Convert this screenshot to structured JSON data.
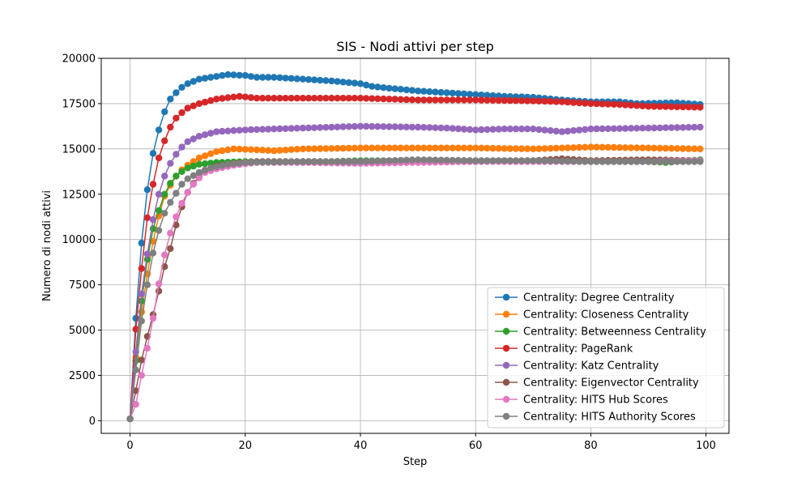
{
  "chart_data": {
    "type": "line",
    "title": "SIS - Nodi attivi per step",
    "xlabel": "Step",
    "ylabel": "Numero di nodi attivi",
    "xlim": [
      -5,
      104
    ],
    "ylim": [
      -700,
      20000
    ],
    "xticks": [
      0,
      20,
      40,
      60,
      80,
      100
    ],
    "yticks": [
      0,
      2500,
      5000,
      7500,
      10000,
      12500,
      15000,
      17500,
      20000
    ],
    "grid": true,
    "legend_position": "lower-right",
    "x_range": [
      0,
      99
    ],
    "series": [
      {
        "name": "Centrality: Degree Centrality",
        "color": "#1f77b4",
        "keypoints": [
          [
            0,
            100
          ],
          [
            1,
            5650
          ],
          [
            2,
            9800
          ],
          [
            3,
            12750
          ],
          [
            4,
            14750
          ],
          [
            5,
            16050
          ],
          [
            6,
            17050
          ],
          [
            7,
            17750
          ],
          [
            8,
            18100
          ],
          [
            9,
            18400
          ],
          [
            10,
            18600
          ],
          [
            12,
            18850
          ],
          [
            15,
            19000
          ],
          [
            17,
            19100
          ],
          [
            20,
            19050
          ],
          [
            22,
            18950
          ],
          [
            25,
            18950
          ],
          [
            30,
            18850
          ],
          [
            35,
            18750
          ],
          [
            40,
            18600
          ],
          [
            42,
            18450
          ],
          [
            45,
            18350
          ],
          [
            50,
            18200
          ],
          [
            55,
            18100
          ],
          [
            60,
            18000
          ],
          [
            65,
            17900
          ],
          [
            70,
            17850
          ],
          [
            75,
            17700
          ],
          [
            80,
            17600
          ],
          [
            85,
            17600
          ],
          [
            88,
            17500
          ],
          [
            95,
            17550
          ],
          [
            99,
            17450
          ]
        ]
      },
      {
        "name": "Centrality: Closeness Centrality",
        "color": "#ff7f0e",
        "keypoints": [
          [
            0,
            100
          ],
          [
            1,
            3500
          ],
          [
            2,
            6000
          ],
          [
            3,
            8100
          ],
          [
            4,
            9900
          ],
          [
            5,
            11300
          ],
          [
            6,
            12400
          ],
          [
            7,
            13000
          ],
          [
            8,
            13500
          ],
          [
            9,
            13850
          ],
          [
            10,
            14100
          ],
          [
            12,
            14500
          ],
          [
            15,
            14850
          ],
          [
            18,
            15000
          ],
          [
            22,
            14950
          ],
          [
            25,
            14900
          ],
          [
            30,
            15000
          ],
          [
            40,
            15050
          ],
          [
            50,
            15050
          ],
          [
            60,
            15050
          ],
          [
            70,
            15000
          ],
          [
            80,
            15100
          ],
          [
            90,
            15050
          ],
          [
            99,
            15000
          ]
        ]
      },
      {
        "name": "Centrality: Betweenness Centrality",
        "color": "#2ca02c",
        "keypoints": [
          [
            0,
            100
          ],
          [
            1,
            3300
          ],
          [
            2,
            6600
          ],
          [
            3,
            8900
          ],
          [
            4,
            10600
          ],
          [
            5,
            11600
          ],
          [
            6,
            12500
          ],
          [
            7,
            13100
          ],
          [
            8,
            13500
          ],
          [
            9,
            13750
          ],
          [
            10,
            13950
          ],
          [
            12,
            14150
          ],
          [
            15,
            14250
          ],
          [
            20,
            14300
          ],
          [
            30,
            14250
          ],
          [
            40,
            14350
          ],
          [
            50,
            14350
          ],
          [
            60,
            14300
          ],
          [
            70,
            14350
          ],
          [
            80,
            14350
          ],
          [
            90,
            14300
          ],
          [
            93,
            14250
          ],
          [
            99,
            14400
          ]
        ]
      },
      {
        "name": "Centrality: PageRank",
        "color": "#d62728",
        "keypoints": [
          [
            0,
            100
          ],
          [
            1,
            5050
          ],
          [
            2,
            8400
          ],
          [
            3,
            11200
          ],
          [
            4,
            13050
          ],
          [
            5,
            14500
          ],
          [
            6,
            15450
          ],
          [
            7,
            16200
          ],
          [
            8,
            16700
          ],
          [
            9,
            17000
          ],
          [
            10,
            17250
          ],
          [
            12,
            17500
          ],
          [
            15,
            17750
          ],
          [
            19,
            17900
          ],
          [
            22,
            17800
          ],
          [
            25,
            17800
          ],
          [
            30,
            17800
          ],
          [
            35,
            17800
          ],
          [
            40,
            17800
          ],
          [
            45,
            17750
          ],
          [
            50,
            17700
          ],
          [
            55,
            17700
          ],
          [
            60,
            17700
          ],
          [
            70,
            17650
          ],
          [
            75,
            17600
          ],
          [
            80,
            17500
          ],
          [
            85,
            17450
          ],
          [
            90,
            17350
          ],
          [
            99,
            17300
          ]
        ]
      },
      {
        "name": "Centrality: Katz Centrality",
        "color": "#9467bd",
        "keypoints": [
          [
            0,
            100
          ],
          [
            1,
            3800
          ],
          [
            2,
            7000
          ],
          [
            3,
            9200
          ],
          [
            4,
            11100
          ],
          [
            5,
            12500
          ],
          [
            6,
            13500
          ],
          [
            7,
            14200
          ],
          [
            8,
            14700
          ],
          [
            9,
            15100
          ],
          [
            10,
            15400
          ],
          [
            12,
            15700
          ],
          [
            15,
            15950
          ],
          [
            20,
            16050
          ],
          [
            25,
            16100
          ],
          [
            30,
            16150
          ],
          [
            35,
            16200
          ],
          [
            40,
            16250
          ],
          [
            50,
            16200
          ],
          [
            55,
            16150
          ],
          [
            60,
            16050
          ],
          [
            65,
            16100
          ],
          [
            70,
            16100
          ],
          [
            75,
            15950
          ],
          [
            80,
            16100
          ],
          [
            90,
            16150
          ],
          [
            99,
            16200
          ]
        ]
      },
      {
        "name": "Centrality: Eigenvector Centrality",
        "color": "#8c564b",
        "keypoints": [
          [
            0,
            100
          ],
          [
            1,
            1650
          ],
          [
            2,
            3350
          ],
          [
            3,
            4650
          ],
          [
            4,
            5850
          ],
          [
            5,
            7150
          ],
          [
            6,
            8500
          ],
          [
            7,
            9500
          ],
          [
            8,
            10800
          ],
          [
            9,
            11800
          ],
          [
            10,
            12600
          ],
          [
            11,
            13100
          ],
          [
            12,
            13500
          ],
          [
            13,
            13800
          ],
          [
            15,
            14050
          ],
          [
            18,
            14200
          ],
          [
            22,
            14300
          ],
          [
            30,
            14300
          ],
          [
            40,
            14300
          ],
          [
            50,
            14350
          ],
          [
            60,
            14350
          ],
          [
            70,
            14350
          ],
          [
            75,
            14450
          ],
          [
            80,
            14350
          ],
          [
            90,
            14400
          ],
          [
            99,
            14350
          ]
        ]
      },
      {
        "name": "Centrality: HITS Hub Scores",
        "color": "#e377c2",
        "keypoints": [
          [
            0,
            100
          ],
          [
            1,
            900
          ],
          [
            2,
            2500
          ],
          [
            3,
            4000
          ],
          [
            4,
            5650
          ],
          [
            5,
            7550
          ],
          [
            6,
            9150
          ],
          [
            7,
            10350
          ],
          [
            8,
            11250
          ],
          [
            9,
            12000
          ],
          [
            10,
            12600
          ],
          [
            11,
            13050
          ],
          [
            12,
            13400
          ],
          [
            13,
            13700
          ],
          [
            15,
            13900
          ],
          [
            18,
            14100
          ],
          [
            22,
            14250
          ],
          [
            30,
            14250
          ],
          [
            40,
            14200
          ],
          [
            50,
            14250
          ],
          [
            60,
            14300
          ],
          [
            70,
            14300
          ],
          [
            80,
            14300
          ],
          [
            90,
            14300
          ],
          [
            99,
            14350
          ]
        ]
      },
      {
        "name": "Centrality: HITS Authority Scores",
        "color": "#7f7f7f",
        "keypoints": [
          [
            0,
            100
          ],
          [
            1,
            2800
          ],
          [
            2,
            5500
          ],
          [
            3,
            7500
          ],
          [
            4,
            9250
          ],
          [
            5,
            10500
          ],
          [
            6,
            11450
          ],
          [
            7,
            12050
          ],
          [
            8,
            12550
          ],
          [
            9,
            13050
          ],
          [
            10,
            13350
          ],
          [
            12,
            13700
          ],
          [
            14,
            13950
          ],
          [
            17,
            14150
          ],
          [
            20,
            14250
          ],
          [
            30,
            14300
          ],
          [
            40,
            14300
          ],
          [
            50,
            14400
          ],
          [
            60,
            14350
          ],
          [
            70,
            14350
          ],
          [
            80,
            14300
          ],
          [
            90,
            14300
          ],
          [
            99,
            14300
          ]
        ]
      }
    ]
  }
}
